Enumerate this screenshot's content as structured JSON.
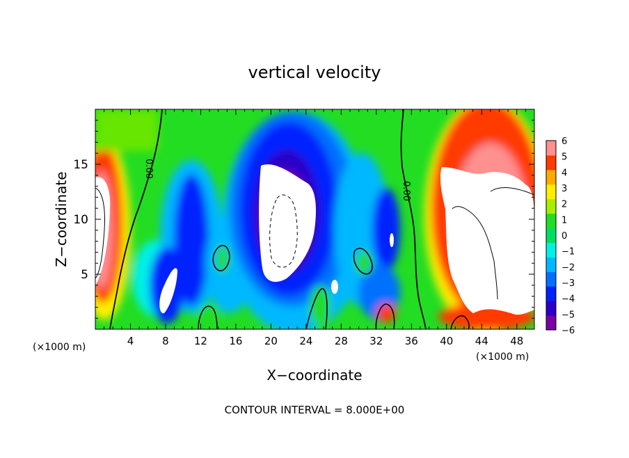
{
  "chart_data": {
    "type": "heatmap",
    "title": "vertical velocity",
    "xlabel": "X−coordinate",
    "ylabel": "Z−coordinate",
    "x_unit_left": "(×1000 m)",
    "x_unit_right": "(×1000 m)",
    "footer": "CONTOUR INTERVAL = 8.000E+00",
    "xlim": [
      0,
      50
    ],
    "ylim": [
      0,
      20
    ],
    "x_ticks": [
      4,
      8,
      12,
      16,
      20,
      24,
      28,
      32,
      36,
      40,
      44,
      48
    ],
    "y_ticks": [
      5,
      10,
      15
    ],
    "colorbar": {
      "min": -6,
      "max": 6,
      "ticks": [
        6,
        5,
        4,
        3,
        2,
        1,
        0,
        -1,
        -2,
        -3,
        -4,
        -5,
        -6
      ],
      "tick_labels": [
        "6",
        "5",
        "4",
        "3",
        "2",
        "1",
        "0",
        "−1",
        "−2",
        "−3",
        "−4",
        "−5",
        "−6"
      ],
      "colors": [
        "#7a00a6",
        "#2a00c8",
        "#0020ff",
        "#0070ff",
        "#00b8ff",
        "#00f0e8",
        "#00e060",
        "#22dd22",
        "#a8ee00",
        "#ffee00",
        "#ffaa00",
        "#ff3a00",
        "#ff9090"
      ]
    },
    "contour_labels": [
      {
        "text": "0.00",
        "x": 6.2,
        "z": 15.5
      },
      {
        "text": "0.00",
        "x": 35.7,
        "z": 13.2
      }
    ],
    "notes_on_field": "Positive updrafts near x≈0–3 and x≈38–50 (values > 6 shown white); strong downdraft core near x≈18–26, z≈6–14 (values < −6 shown white); zero contours near x≈5–6 and x≈35–36."
  }
}
